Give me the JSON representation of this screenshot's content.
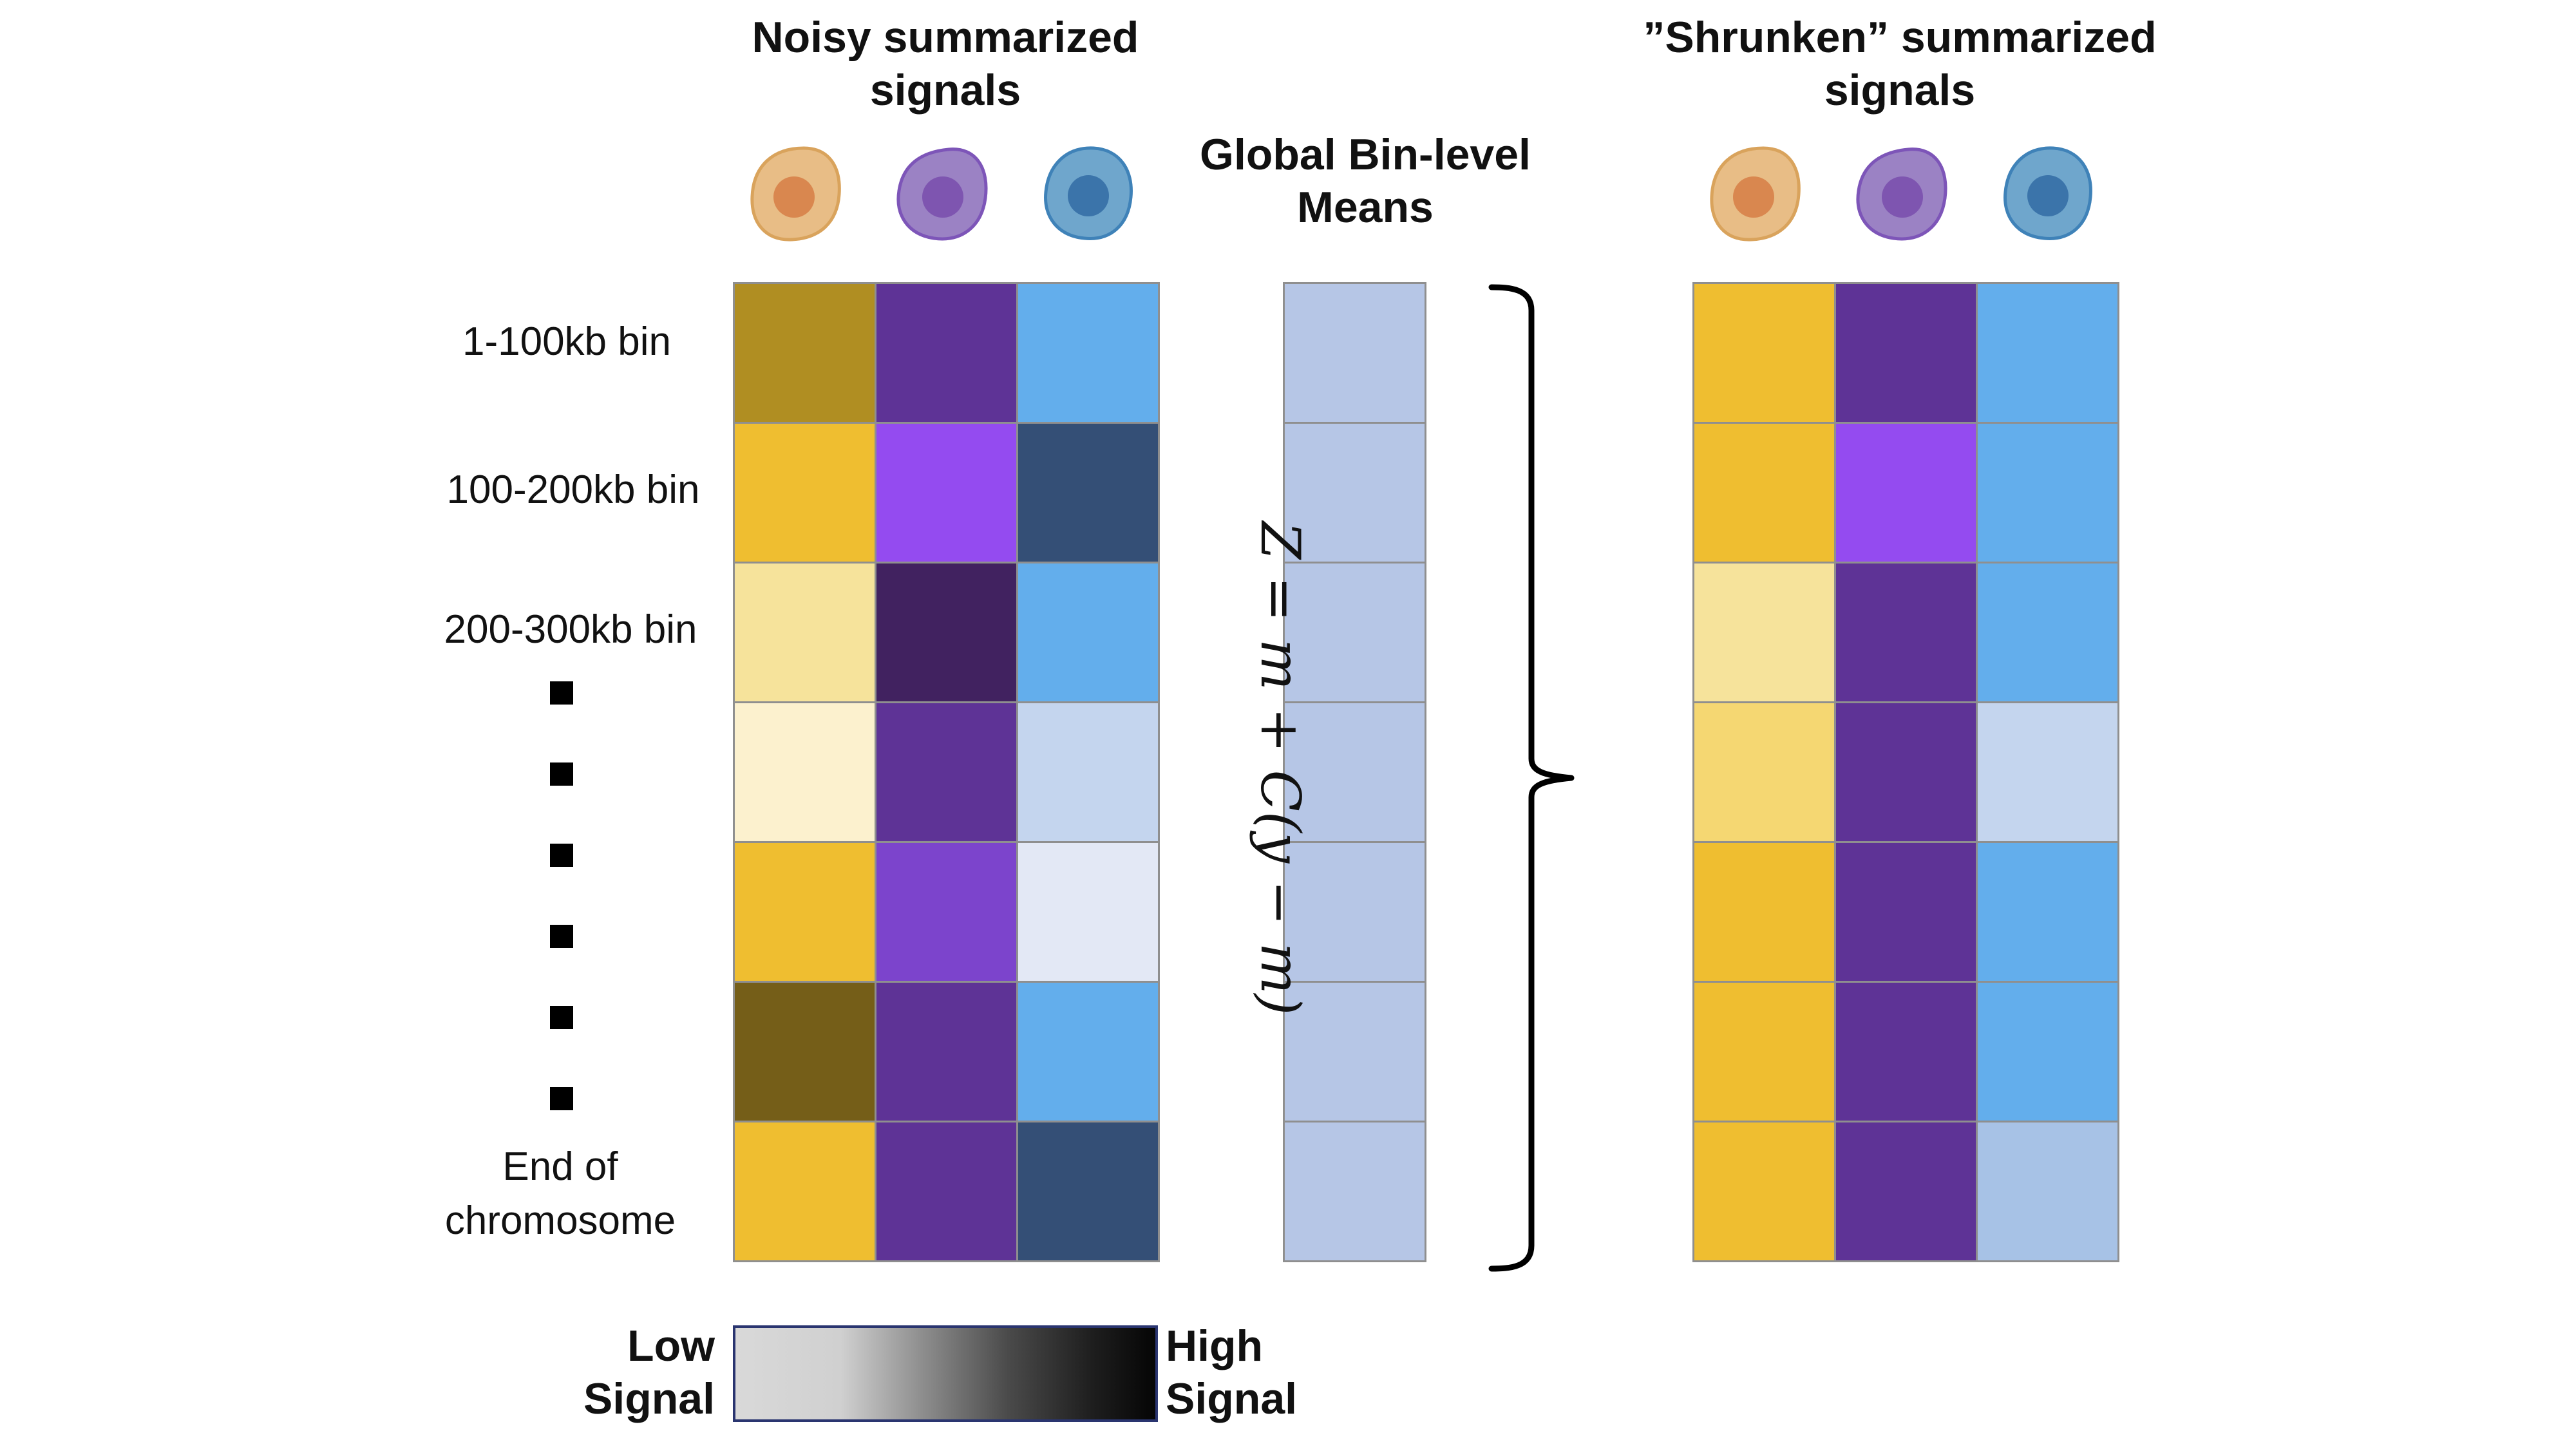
{
  "panels": {
    "noisy": {
      "title_line1": "Noisy summarized",
      "title_line2": "signals"
    },
    "means": {
      "title_line1": "Global Bin-level",
      "title_line2": "Means"
    },
    "shrunken": {
      "title_line1": "”Shrunken” summarized",
      "title_line2": "signals"
    }
  },
  "row_labels": [
    "1-100kb bin",
    "100-200kb bin",
    "200-300kb bin"
  ],
  "end_label": {
    "line1": "End of",
    "line2": "chromosome"
  },
  "formula": {
    "text": "Z = m + C(y − m)"
  },
  "legend": {
    "low_line1": "Low",
    "low_line2": "Signal",
    "high_line1": "High",
    "high_line2": "Signal"
  },
  "cell_types": [
    {
      "name": "orange-cell",
      "fill": "#e8bd86",
      "stroke": "#d9a35c",
      "nucleus": "#d9874f"
    },
    {
      "name": "purple-cell",
      "fill": "#9b82c4",
      "stroke": "#7d55b8",
      "nucleus": "#7e55b0"
    },
    {
      "name": "blue-cell",
      "fill": "#6fa6cc",
      "stroke": "#3f82b8",
      "nucleus": "#3b74aa"
    }
  ],
  "colors": {
    "noisy": [
      [
        "#b08e22",
        "#5e3396",
        "#63aeec"
      ],
      [
        "#efbe30",
        "#944bf0",
        "#344f76"
      ],
      [
        "#f6e39b",
        "#412260",
        "#63aeec"
      ],
      [
        "#fcf1ce",
        "#5e3396",
        "#c4d5ee"
      ],
      [
        "#efbe30",
        "#7c44cc",
        "#e3e8f5"
      ],
      [
        "#755e18",
        "#5e3396",
        "#63aeec"
      ],
      [
        "#efbe30",
        "#5e3396",
        "#344f76"
      ]
    ],
    "means": "#b6c6e6",
    "shrunken": [
      [
        "#efbe30",
        "#5e3396",
        "#63aeec"
      ],
      [
        "#efbe30",
        "#944bf0",
        "#63aeec"
      ],
      [
        "#f6e39b",
        "#5e3396",
        "#63aeec"
      ],
      [
        "#f5d772",
        "#5e3396",
        "#c4d5ee"
      ],
      [
        "#efbe30",
        "#5e3396",
        "#63aeec"
      ],
      [
        "#efbe30",
        "#5e3396",
        "#63aeec"
      ],
      [
        "#efbe30",
        "#5e3396",
        "#a7c2e6"
      ]
    ]
  }
}
